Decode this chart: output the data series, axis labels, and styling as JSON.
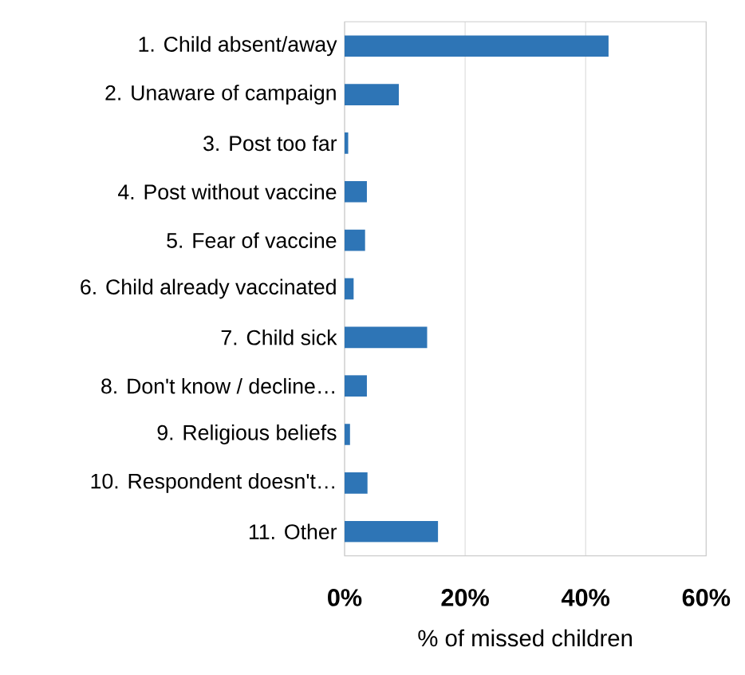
{
  "chart_data": {
    "type": "bar",
    "orientation": "horizontal",
    "xlabel": "% of missed children",
    "categories": [
      "1. Child absent/away",
      "2. Unaware of campaign",
      "3. Post too far",
      "4. Post without vaccine",
      "5. Fear of vaccine",
      "6. Child already vaccinated",
      "7. Child sick",
      "8. Don't know / decline…",
      "9. Religious beliefs",
      "10. Respondent doesn't…",
      "11. Other"
    ],
    "values": [
      43.8,
      9.0,
      0.6,
      3.7,
      3.4,
      1.5,
      13.7,
      3.7,
      0.9,
      3.8,
      15.5
    ],
    "color": "#2e75b6",
    "xlim": [
      0,
      60
    ],
    "xticks": [
      {
        "value": 0,
        "label": "0%"
      },
      {
        "value": 20,
        "label": "20%"
      },
      {
        "value": 40,
        "label": "40%"
      },
      {
        "value": 60,
        "label": "60%"
      }
    ],
    "grid": "x"
  }
}
